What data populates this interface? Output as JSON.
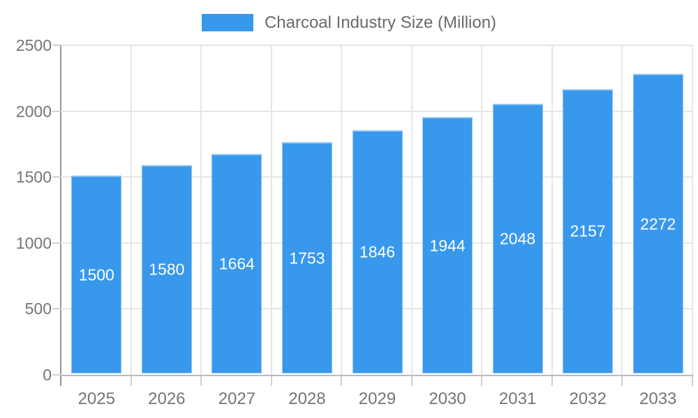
{
  "chart_data": {
    "type": "bar",
    "title": "",
    "xlabel": "",
    "ylabel": "",
    "categories": [
      "2025",
      "2026",
      "2027",
      "2028",
      "2029",
      "2030",
      "2031",
      "2032",
      "2033"
    ],
    "series": [
      {
        "name": "Charcoal Industry Size (Million)",
        "values": [
          1500,
          1580,
          1664,
          1753,
          1846,
          1944,
          2048,
          2157,
          2272
        ]
      }
    ],
    "ylim": [
      0,
      2500
    ],
    "yticks": [
      0,
      500,
      1000,
      1500,
      2000,
      2500
    ],
    "grid": true,
    "legend_position": "top",
    "value_labels": "inside-center-white"
  },
  "legend": {
    "label": "Charcoal Industry Size (Million)"
  },
  "colors": {
    "bar": "#3898EC",
    "bar_value_text": "#FFFFFF",
    "axis_text": "#757575",
    "legend_text": "#6B6B6B",
    "grid_line": "#E6E6E6",
    "y_axis_line": "#949494",
    "x_axis_line": "#B9B9B9",
    "tick_mark": "#CFCFCF",
    "background": "#FFFFFF"
  }
}
